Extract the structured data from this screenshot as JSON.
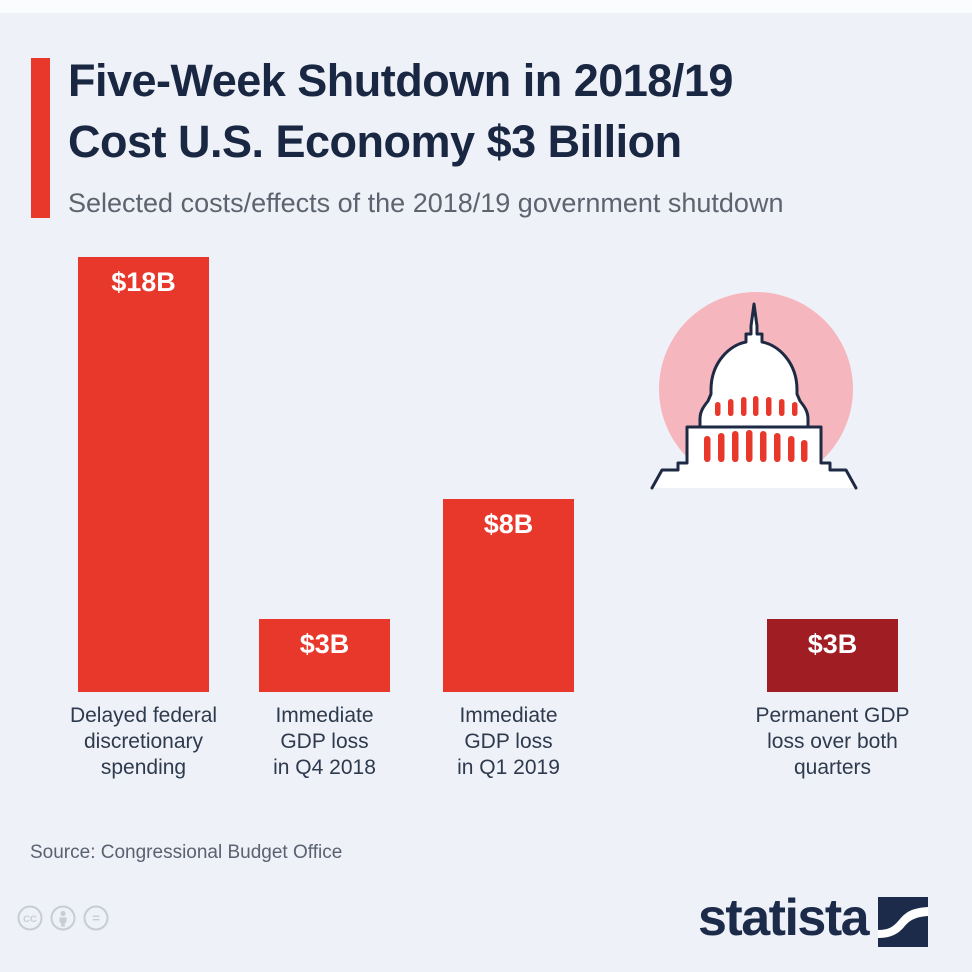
{
  "page": {
    "background_color": "#eef1f7"
  },
  "header": {
    "title": "Five-Week Shutdown in 2018/19\nCost U.S. Economy $3 Billion",
    "subtitle": "Selected costs/effects of the 2018/19 government shutdown",
    "accent_color": "#e8382b",
    "title_color": "#1a2742"
  },
  "chart_data": {
    "type": "bar",
    "title": "Five-Week Shutdown in 2018/19 Cost U.S. Economy $3 Billion",
    "subtitle": "Selected costs/effects of the 2018/19 government shutdown",
    "categories": [
      "Delayed federal\ndiscretionary\nspending",
      "Immediate\nGDP loss\nin Q4 2018",
      "Immediate\nGDP loss\nin Q1 2019",
      "Permanent GDP\nloss over both\nquarters"
    ],
    "values": [
      18,
      3,
      8,
      3
    ],
    "value_labels": [
      "$18B",
      "$3B",
      "$8B",
      "$3B"
    ],
    "bar_colors": [
      "#e8382b",
      "#e8382b",
      "#e8382b",
      "#a01d23"
    ],
    "unit": "billion U.S. dollars",
    "xlabel": "",
    "ylabel": "",
    "ylim": [
      0,
      18
    ],
    "grid": false,
    "legend": false,
    "value_label_position": "inside-top"
  },
  "capitol_icon": {
    "name": "us-capitol-building",
    "circle_color": "#f6b6bd",
    "outline_color": "#1e2a44",
    "building_fill": "#ffffff",
    "column_color": "#e8382b"
  },
  "footer": {
    "source": "Source: Congressional Budget Office",
    "license": {
      "cc_glyph": "CC",
      "equals_glyph": "=",
      "icon_color": "#c7ccd7"
    },
    "brand": "statista",
    "brand_color": "#1c2b4a"
  }
}
